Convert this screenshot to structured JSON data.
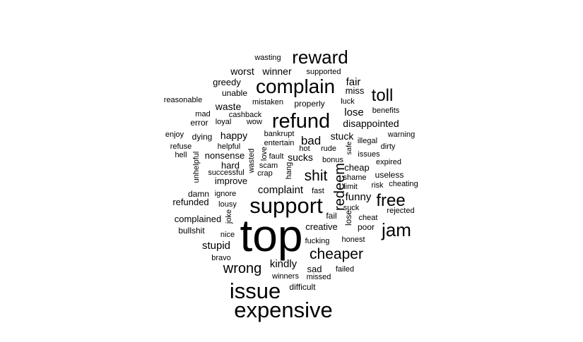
{
  "word_cloud": {
    "color": "#000000",
    "background": "#ffffff",
    "words": [
      {
        "text": "top",
        "size": 64
      },
      {
        "text": "expensive",
        "size": 31
      },
      {
        "text": "issue",
        "size": 31
      },
      {
        "text": "support",
        "size": 31
      },
      {
        "text": "refund",
        "size": 29
      },
      {
        "text": "complain",
        "size": 28
      },
      {
        "text": "reward",
        "size": 26
      },
      {
        "text": "jam",
        "size": 26
      },
      {
        "text": "free",
        "size": 24
      },
      {
        "text": "toll",
        "size": 24
      },
      {
        "text": "cheaper",
        "size": 21
      },
      {
        "text": "shit",
        "size": 21
      },
      {
        "text": "redeem",
        "size": 20
      },
      {
        "text": "wrong",
        "size": 20
      },
      {
        "text": "bad",
        "size": 17
      },
      {
        "text": "stupid",
        "size": 15
      },
      {
        "text": "kindly",
        "size": 15
      },
      {
        "text": "complaint",
        "size": 15
      },
      {
        "text": "lose",
        "size": 15
      },
      {
        "text": "fair",
        "size": 15
      },
      {
        "text": "funny",
        "size": 15
      },
      {
        "text": "worst",
        "size": 14
      },
      {
        "text": "winner",
        "size": 14
      },
      {
        "text": "happy",
        "size": 14
      },
      {
        "text": "sucks",
        "size": 14
      },
      {
        "text": "stuck",
        "size": 14
      },
      {
        "text": "disappointed",
        "size": 14
      },
      {
        "text": "waste",
        "size": 14
      },
      {
        "text": "greedy",
        "size": 13
      },
      {
        "text": "miss",
        "size": 13
      },
      {
        "text": "creative",
        "size": 13
      },
      {
        "text": "complained",
        "size": 13
      },
      {
        "text": "refunded",
        "size": 13
      },
      {
        "text": "nonsense",
        "size": 13
      },
      {
        "text": "improve",
        "size": 13
      },
      {
        "text": "hard",
        "size": 13
      },
      {
        "text": "cheap",
        "size": 13
      },
      {
        "text": "sad",
        "size": 13
      },
      {
        "text": "difficult",
        "size": 12
      },
      {
        "text": "unable",
        "size": 12
      },
      {
        "text": "properly",
        "size": 12
      },
      {
        "text": "bullshit",
        "size": 12
      },
      {
        "text": "lose",
        "size": 12
      },
      {
        "text": "error",
        "size": 12
      },
      {
        "text": "dying",
        "size": 12
      },
      {
        "text": "poor",
        "size": 12
      },
      {
        "text": "useless",
        "size": 12
      },
      {
        "text": "fail",
        "size": 12
      },
      {
        "text": "damn",
        "size": 12
      },
      {
        "text": "lousy",
        "size": 11
      },
      {
        "text": "hell",
        "size": 11
      },
      {
        "text": "suck",
        "size": 11
      },
      {
        "text": "fucking",
        "size": 11
      },
      {
        "text": "honest",
        "size": 11
      },
      {
        "text": "risk",
        "size": 11
      },
      {
        "text": "crap",
        "size": 11
      },
      {
        "text": "loyal",
        "size": 11
      },
      {
        "text": "luck",
        "size": 11
      },
      {
        "text": "benefits",
        "size": 11
      },
      {
        "text": "mistaken",
        "size": 11
      },
      {
        "text": "wasting",
        "size": 11
      },
      {
        "text": "supported",
        "size": 11
      },
      {
        "text": "reasonable",
        "size": 11
      },
      {
        "text": "mad",
        "size": 11
      },
      {
        "text": "enjoy",
        "size": 11
      },
      {
        "text": "helpful",
        "size": 11
      },
      {
        "text": "refuse",
        "size": 11
      },
      {
        "text": "successful",
        "size": 11
      },
      {
        "text": "unhelpful",
        "size": 11
      },
      {
        "text": "scam",
        "size": 11
      },
      {
        "text": "ignore",
        "size": 11
      },
      {
        "text": "wasted",
        "size": 11
      },
      {
        "text": "hot",
        "size": 11
      },
      {
        "text": "rude",
        "size": 11
      },
      {
        "text": "bonus",
        "size": 11
      },
      {
        "text": "fast",
        "size": 11
      },
      {
        "text": "limit",
        "size": 11
      },
      {
        "text": "shame",
        "size": 11
      },
      {
        "text": "cheat",
        "size": 11
      },
      {
        "text": "expired",
        "size": 11
      },
      {
        "text": "rejected",
        "size": 11
      },
      {
        "text": "cheating",
        "size": 11
      },
      {
        "text": "warning",
        "size": 11
      },
      {
        "text": "dirty",
        "size": 11
      },
      {
        "text": "issues",
        "size": 11
      },
      {
        "text": "illegal",
        "size": 11
      },
      {
        "text": "safe",
        "size": 10
      },
      {
        "text": "nice",
        "size": 11
      },
      {
        "text": "bravo",
        "size": 11
      },
      {
        "text": "winners",
        "size": 11
      },
      {
        "text": "missed",
        "size": 11
      },
      {
        "text": "failed",
        "size": 11
      },
      {
        "text": "joke",
        "size": 11
      },
      {
        "text": "cashback",
        "size": 11
      },
      {
        "text": "wow",
        "size": 11
      },
      {
        "text": "bankrupt",
        "size": 11
      },
      {
        "text": "entertain",
        "size": 11
      },
      {
        "text": "fault",
        "size": 11
      },
      {
        "text": "love",
        "size": 11
      },
      {
        "text": "hang",
        "size": 11
      }
    ]
  }
}
